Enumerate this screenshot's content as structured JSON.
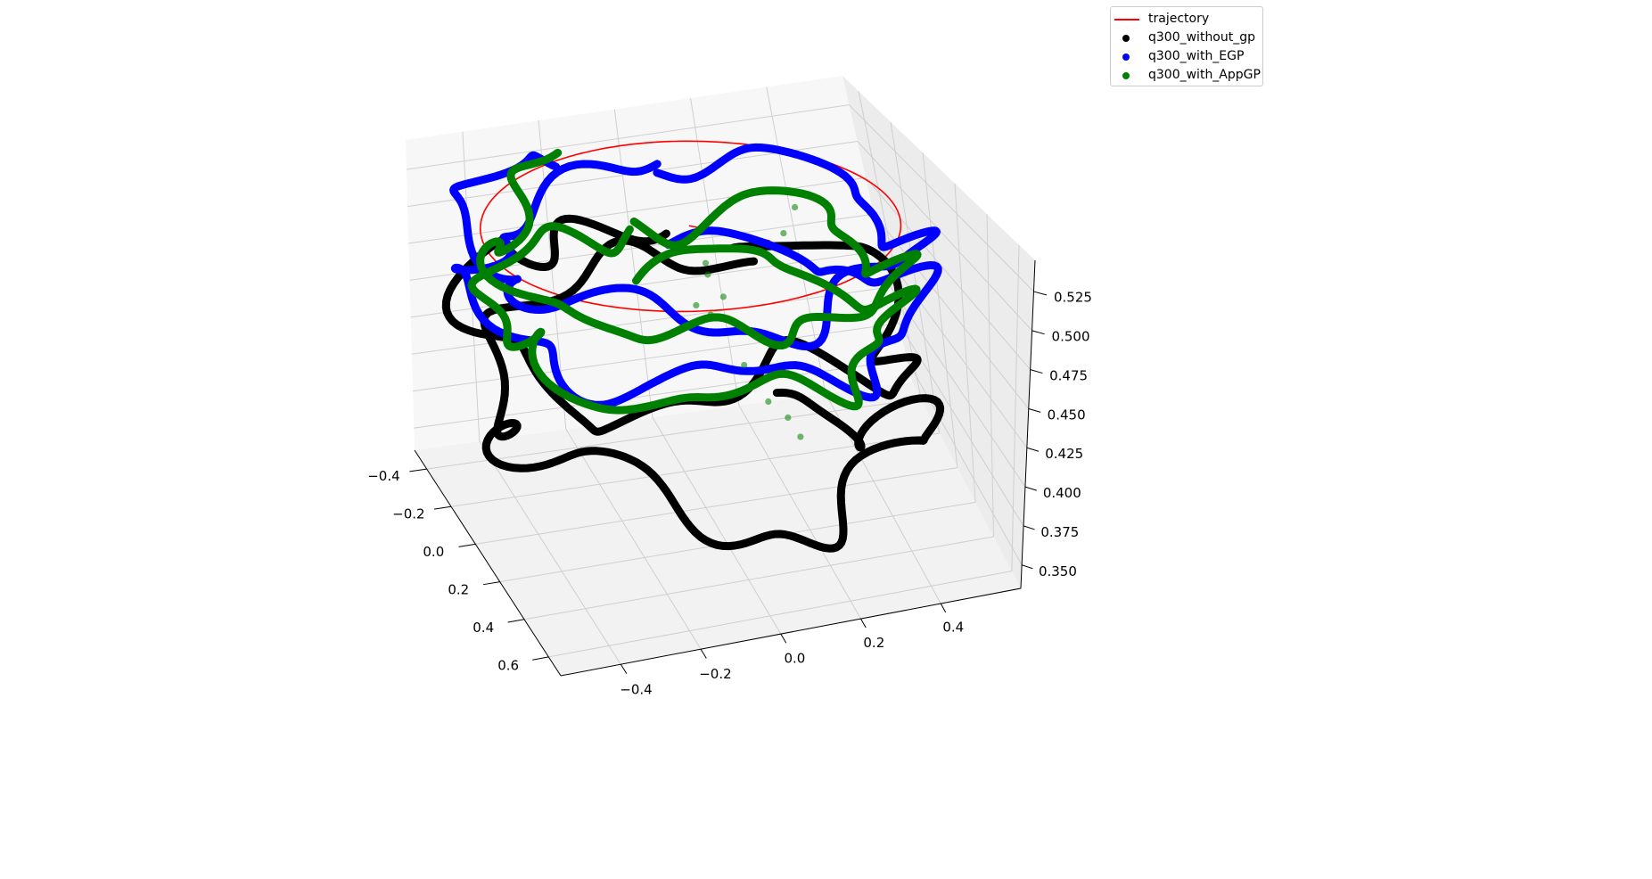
{
  "chart_data": {
    "type": "scatter",
    "projection": "3d",
    "title": "",
    "xlabel": "",
    "ylabel": "",
    "zlabel": "",
    "axes": {
      "x": {
        "lim": [
          -0.55,
          0.6
        ],
        "ticks": [
          -0.4,
          -0.2,
          0.0,
          0.2,
          0.4
        ],
        "tick_labels": [
          "−0.4",
          "−0.2",
          "0.0",
          "0.2",
          "0.4"
        ]
      },
      "y": {
        "lim": [
          -0.5,
          0.7
        ],
        "ticks": [
          -0.4,
          -0.2,
          0.0,
          0.2,
          0.4,
          0.6
        ],
        "tick_labels": [
          "−0.4",
          "−0.2",
          "0.0",
          "0.2",
          "0.4",
          "0.6"
        ]
      },
      "z": {
        "lim": [
          0.335,
          0.545
        ],
        "ticks": [
          0.35,
          0.375,
          0.4,
          0.425,
          0.45,
          0.475,
          0.5,
          0.525
        ],
        "tick_labels": [
          "0.350",
          "0.375",
          "0.400",
          "0.425",
          "0.450",
          "0.475",
          "0.500",
          "0.525"
        ]
      }
    },
    "grid": true,
    "legend": {
      "position": "top-right",
      "entries": [
        {
          "label": "trajectory",
          "marker": "line",
          "color": "#ff0000"
        },
        {
          "label": "q300_without_gp",
          "marker": "dot",
          "color": "#000000"
        },
        {
          "label": "q300_with_EGP",
          "marker": "dot",
          "color": "#0000ff"
        },
        {
          "label": "q300_with_AppGP",
          "marker": "dot",
          "color": "#008000"
        }
      ]
    },
    "series": [
      {
        "name": "trajectory",
        "kind": "line",
        "color": "#ff0000",
        "circle": {
          "center": [
            0.0,
            0.0
          ],
          "radius": 0.5,
          "z": 0.52
        },
        "radial_segment": {
          "from": [
            0.0,
            0.0,
            0.52
          ],
          "to": [
            0.15,
            0.15,
            0.52
          ]
        }
      },
      {
        "name": "q300_without_gp",
        "kind": "scatter",
        "color": "#000000",
        "radius_base": 0.5,
        "radius_wobble": [
          [
            0.06,
            5,
            0.3
          ],
          [
            0.03,
            11,
            1.2
          ]
        ],
        "z_wobble": [
          [
            0.02,
            3,
            0.5
          ],
          [
            0.01,
            8,
            2.0
          ]
        ],
        "turns": [
          {
            "start_deg": 300,
            "sweep_deg": 360,
            "z_start": 0.35,
            "z_end": 0.44
          },
          {
            "start_deg": 300,
            "sweep_deg": 340,
            "z_start": 0.44,
            "z_end": 0.48
          }
        ]
      },
      {
        "name": "q300_with_EGP",
        "kind": "scatter",
        "color": "#0000ff",
        "radius_base": 0.52,
        "radius_wobble": [
          [
            0.05,
            6,
            0.8
          ],
          [
            0.02,
            13,
            0.2
          ]
        ],
        "z_wobble": [
          [
            0.012,
            4,
            1.1
          ],
          [
            0.006,
            10,
            0.4
          ]
        ],
        "turns": [
          {
            "start_deg": 280,
            "sweep_deg": 360,
            "z_start": 0.445,
            "z_end": 0.5
          },
          {
            "start_deg": 280,
            "sweep_deg": 330,
            "z_start": 0.5,
            "z_end": 0.525
          }
        ]
      },
      {
        "name": "q300_with_AppGP",
        "kind": "scatter",
        "color": "#008000",
        "radius_base": 0.47,
        "radius_wobble": [
          [
            0.05,
            5,
            1.7
          ],
          [
            0.025,
            12,
            0.9
          ]
        ],
        "z_wobble": [
          [
            0.01,
            5,
            0.2
          ],
          [
            0.006,
            9,
            1.3
          ]
        ],
        "turns": [
          {
            "start_deg": 270,
            "sweep_deg": 360,
            "z_start": 0.44,
            "z_end": 0.475
          },
          {
            "start_deg": 270,
            "sweep_deg": 340,
            "z_start": 0.475,
            "z_end": 0.52
          }
        ],
        "scattered": [
          [
            0.02,
            0.05,
            0.5
          ],
          [
            0.03,
            0.03,
            0.49
          ],
          [
            0.05,
            0.08,
            0.48
          ],
          [
            0.0,
            0.02,
            0.47
          ],
          [
            0.04,
            0.0,
            0.46
          ],
          [
            0.06,
            -0.02,
            0.455
          ],
          [
            0.1,
            0.05,
            0.43
          ],
          [
            0.12,
            0.08,
            0.42
          ],
          [
            0.14,
            0.1,
            0.41
          ],
          [
            0.18,
            0.12,
            0.4
          ],
          [
            0.2,
            0.15,
            0.39
          ],
          [
            0.25,
            -0.05,
            0.5
          ],
          [
            0.3,
            -0.1,
            0.51
          ]
        ]
      }
    ]
  }
}
